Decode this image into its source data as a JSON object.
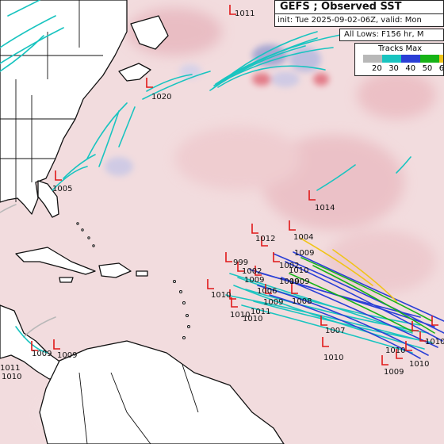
{
  "header": {
    "title": "GEFS ; Observed SST",
    "init_line": "init: Tue 2025-09-02-06Z, valid: Mon",
    "lows_line": "All Lows: F156 hr, M"
  },
  "legend": {
    "title": "Tracks Max",
    "ticks": [
      "20",
      "30",
      "40",
      "50",
      "6"
    ],
    "colors": [
      "#b8b8b8",
      "#19c4c0",
      "#2a3fd6",
      "#17b317",
      "#f0c419"
    ]
  },
  "pressure_labels": [
    "1011",
    "1020",
    "1005",
    "1014",
    "1012",
    "1004",
    "1009",
    "999",
    "1002",
    "1002",
    "1009",
    "1010",
    "1009",
    "1006",
    "1009",
    "1008",
    "1007",
    "1010",
    "1011",
    "1010",
    "1009",
    "1010",
    "1010",
    "1010",
    "1009",
    "1010",
    "1010",
    "1009",
    "1009",
    "1011",
    "1010"
  ],
  "colors": {
    "ocean": "#f2dcde",
    "land": "#ffffff",
    "border": "#111111",
    "low_marker": "#e01818",
    "track_weak": "#19c4c0",
    "track_mid": "#2a3fd6",
    "track_strong": "#17b317",
    "track_strongest": "#f0c419"
  }
}
